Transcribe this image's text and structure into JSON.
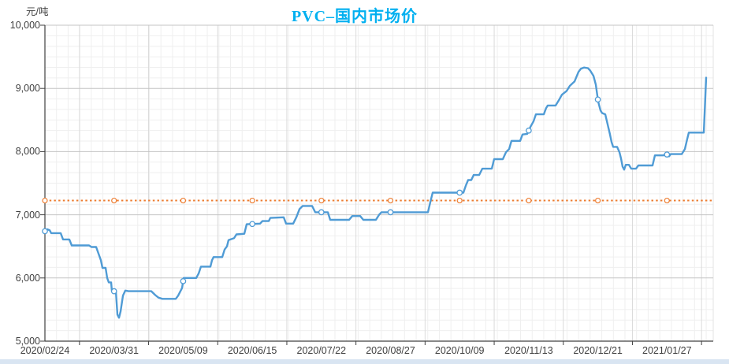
{
  "chart_data": {
    "type": "line",
    "title": "PVC–国内市场价",
    "title_color": "#00b0f0",
    "unit_label": "元/吨",
    "ylim": [
      5000,
      10000
    ],
    "y_tick_interval": 1000,
    "y_ticks": [
      {
        "value": 10000,
        "label": "10,000"
      },
      {
        "value": 9000,
        "label": "9,000"
      },
      {
        "value": 8000,
        "label": "8,000"
      },
      {
        "value": 7000,
        "label": "7,000"
      },
      {
        "value": 6000,
        "label": "6,000"
      },
      {
        "value": 5000,
        "label": "5,000"
      }
    ],
    "x_tick_labels": [
      "2020/02/24",
      "2020/03/31",
      "2020/05/09",
      "2020/06/15",
      "2020/07/22",
      "2020/08/27",
      "2020/10/09",
      "2020/11/13",
      "2020/12/21",
      "2021/01/27"
    ],
    "grid": "major and minor gridlines, light gray, legend none",
    "axis_color": "#404040",
    "series": [
      {
        "color": "#4f9bd5",
        "style": "solid with open circle markers at label positions",
        "points_frac_value": [
          [
            0.0,
            6740
          ],
          [
            0.0035,
            6770
          ],
          [
            0.0071,
            6755
          ],
          [
            0.0094,
            6710
          ],
          [
            0.0236,
            6710
          ],
          [
            0.0271,
            6610
          ],
          [
            0.0366,
            6610
          ],
          [
            0.0401,
            6515
          ],
          [
            0.066,
            6515
          ],
          [
            0.0696,
            6490
          ],
          [
            0.0767,
            6490
          ],
          [
            0.0837,
            6280
          ],
          [
            0.0861,
            6160
          ],
          [
            0.0908,
            6160
          ],
          [
            0.0932,
            6000
          ],
          [
            0.0955,
            5930
          ],
          [
            0.0991,
            5930
          ],
          [
            0.1002,
            5790
          ],
          [
            0.1061,
            5790
          ],
          [
            0.1085,
            5420
          ],
          [
            0.1108,
            5370
          ],
          [
            0.1132,
            5470
          ],
          [
            0.1167,
            5720
          ],
          [
            0.1203,
            5800
          ],
          [
            0.125,
            5790
          ],
          [
            0.1592,
            5790
          ],
          [
            0.1651,
            5730
          ],
          [
            0.1698,
            5690
          ],
          [
            0.1757,
            5670
          ],
          [
            0.1958,
            5670
          ],
          [
            0.1993,
            5720
          ],
          [
            0.2052,
            5840
          ],
          [
            0.2076,
            6000
          ],
          [
            0.2264,
            6000
          ],
          [
            0.23,
            6070
          ],
          [
            0.2335,
            6180
          ],
          [
            0.2476,
            6180
          ],
          [
            0.25,
            6280
          ],
          [
            0.2524,
            6330
          ],
          [
            0.2653,
            6330
          ],
          [
            0.2689,
            6450
          ],
          [
            0.2724,
            6500
          ],
          [
            0.2748,
            6600
          ],
          [
            0.283,
            6630
          ],
          [
            0.2866,
            6690
          ],
          [
            0.2984,
            6700
          ],
          [
            0.3019,
            6850
          ],
          [
            0.3219,
            6860
          ],
          [
            0.3255,
            6900
          ],
          [
            0.3349,
            6900
          ],
          [
            0.3373,
            6950
          ],
          [
            0.3573,
            6960
          ],
          [
            0.3608,
            6860
          ],
          [
            0.3715,
            6860
          ],
          [
            0.3762,
            6960
          ],
          [
            0.3809,
            7090
          ],
          [
            0.3856,
            7140
          ],
          [
            0.3998,
            7140
          ],
          [
            0.4045,
            7040
          ],
          [
            0.4233,
            7040
          ],
          [
            0.4269,
            6920
          ],
          [
            0.4552,
            6920
          ],
          [
            0.4599,
            6980
          ],
          [
            0.4717,
            6980
          ],
          [
            0.4764,
            6920
          ],
          [
            0.4953,
            6920
          ],
          [
            0.5,
            7000
          ],
          [
            0.5035,
            7040
          ],
          [
            0.5731,
            7040
          ],
          [
            0.5767,
            7200
          ],
          [
            0.5802,
            7350
          ],
          [
            0.6262,
            7350
          ],
          [
            0.6297,
            7460
          ],
          [
            0.6333,
            7550
          ],
          [
            0.638,
            7550
          ],
          [
            0.6415,
            7630
          ],
          [
            0.6498,
            7630
          ],
          [
            0.6545,
            7730
          ],
          [
            0.6686,
            7730
          ],
          [
            0.6722,
            7880
          ],
          [
            0.6851,
            7880
          ],
          [
            0.6899,
            7990
          ],
          [
            0.6946,
            8040
          ],
          [
            0.6981,
            8170
          ],
          [
            0.7111,
            8170
          ],
          [
            0.7146,
            8270
          ],
          [
            0.7217,
            8280
          ],
          [
            0.7264,
            8390
          ],
          [
            0.7311,
            8480
          ],
          [
            0.7347,
            8590
          ],
          [
            0.7465,
            8590
          ],
          [
            0.75,
            8690
          ],
          [
            0.7524,
            8730
          ],
          [
            0.7642,
            8730
          ],
          [
            0.7689,
            8810
          ],
          [
            0.7736,
            8900
          ],
          [
            0.7807,
            8960
          ],
          [
            0.7854,
            9040
          ],
          [
            0.7925,
            9110
          ],
          [
            0.7984,
            9260
          ],
          [
            0.8019,
            9310
          ],
          [
            0.8066,
            9330
          ],
          [
            0.8125,
            9320
          ],
          [
            0.816,
            9280
          ],
          [
            0.8208,
            9200
          ],
          [
            0.8243,
            9060
          ],
          [
            0.8278,
            8790
          ],
          [
            0.8314,
            8650
          ],
          [
            0.8337,
            8610
          ],
          [
            0.8384,
            8590
          ],
          [
            0.842,
            8430
          ],
          [
            0.8455,
            8270
          ],
          [
            0.8479,
            8150
          ],
          [
            0.8502,
            8075
          ],
          [
            0.8561,
            8075
          ],
          [
            0.8597,
            7990
          ],
          [
            0.862,
            7890
          ],
          [
            0.8644,
            7760
          ],
          [
            0.8667,
            7715
          ],
          [
            0.8691,
            7790
          ],
          [
            0.8738,
            7790
          ],
          [
            0.8774,
            7730
          ],
          [
            0.8844,
            7730
          ],
          [
            0.888,
            7780
          ],
          [
            0.9092,
            7780
          ],
          [
            0.9127,
            7940
          ],
          [
            0.9257,
            7940
          ],
          [
            0.9292,
            7970
          ],
          [
            0.9316,
            7945
          ],
          [
            0.934,
            7925
          ],
          [
            0.9363,
            7960
          ],
          [
            0.9528,
            7960
          ],
          [
            0.9575,
            8040
          ],
          [
            0.9611,
            8200
          ],
          [
            0.9634,
            8300
          ],
          [
            0.9858,
            8300
          ],
          [
            0.9894,
            9170
          ]
        ]
      }
    ],
    "reference_line": {
      "value": 7225,
      "color": "#ed7d31",
      "style": "dotted with open circle markers at label positions"
    }
  }
}
